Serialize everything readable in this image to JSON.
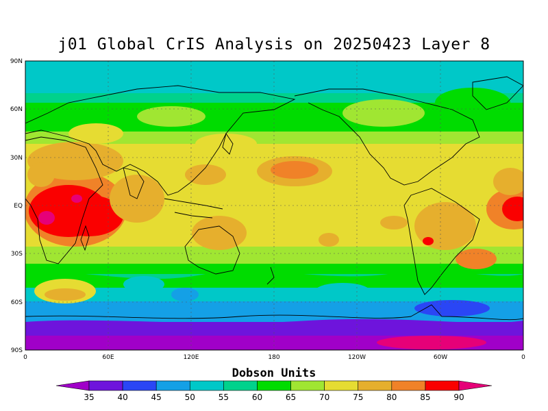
{
  "title": "j01 Global CrIS Analysis on 20250423 Layer 8",
  "colorbar": {
    "label": "Dobson Units",
    "ticks": [
      "35",
      "40",
      "45",
      "50",
      "55",
      "60",
      "65",
      "70",
      "75",
      "80",
      "85",
      "90"
    ],
    "colors": [
      "#a000c8",
      "#6e14dc",
      "#2a46f5",
      "#14a0e6",
      "#00c8c8",
      "#00d28c",
      "#00dc00",
      "#a0e632",
      "#e6dc32",
      "#e6af2d",
      "#f08228",
      "#fa0000",
      "#e60078"
    ]
  },
  "chart_data": {
    "type": "heatmap",
    "title": "j01 Global CrIS Analysis on 20250423 Layer 8",
    "legend_label": "Dobson Units",
    "lon_range": [
      0,
      360
    ],
    "lat_range": [
      -90,
      90
    ],
    "lat_ticks": [
      "90N",
      "60N",
      "30N",
      "EQ",
      "30S",
      "60S",
      "90S"
    ],
    "lon_ticks": [
      "0",
      "60E",
      "120E",
      "180",
      "120W",
      "60W",
      "0"
    ],
    "value_range": [
      35,
      90
    ]
  }
}
